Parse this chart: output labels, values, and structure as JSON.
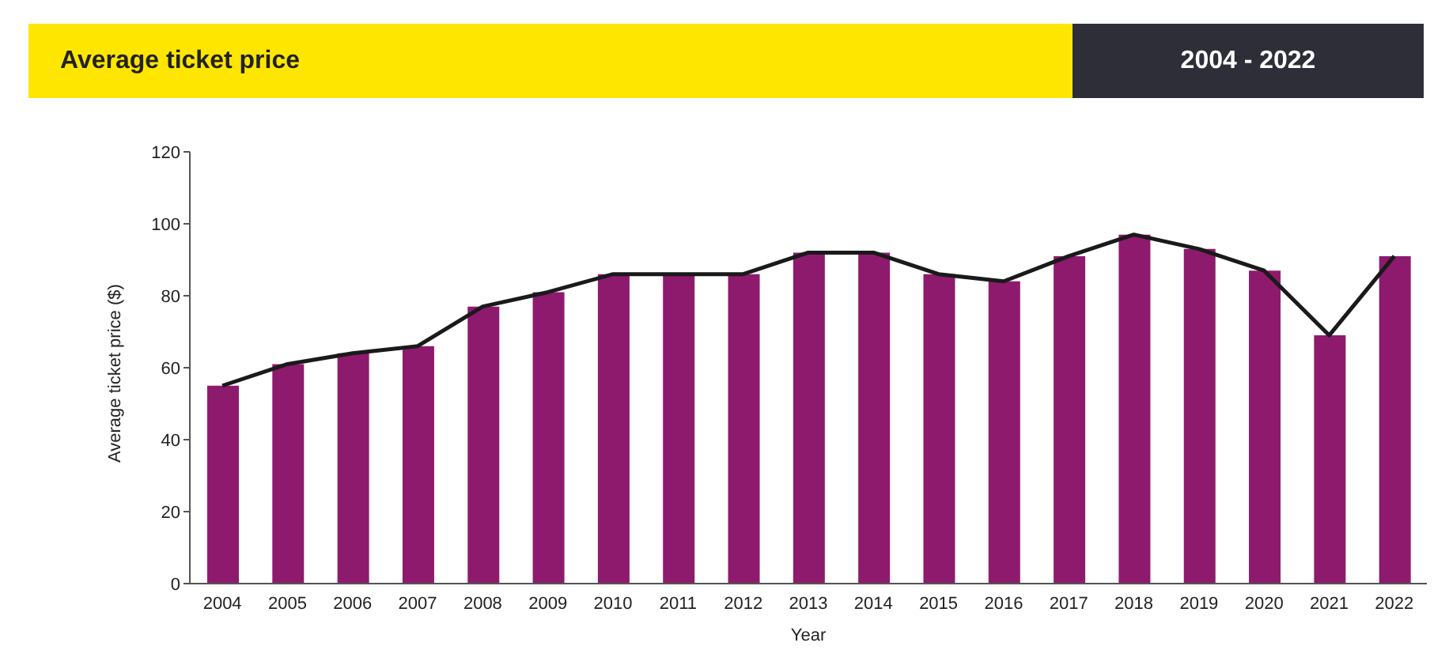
{
  "chart_data": {
    "type": "bar",
    "title": "Average ticket price",
    "subtitle": "2004 - 2022",
    "xlabel": "Year",
    "ylabel": "Average ticket price ($)",
    "categories": [
      "2004",
      "2005",
      "2006",
      "2007",
      "2008",
      "2009",
      "2010",
      "2011",
      "2012",
      "2013",
      "2014",
      "2015",
      "2016",
      "2017",
      "2018",
      "2019",
      "2020",
      "2021",
      "2022"
    ],
    "series": [
      {
        "color": "#8e1a6e",
        "values": [
          55,
          61,
          64,
          66,
          77,
          81,
          86,
          86,
          86,
          92,
          92,
          86,
          84,
          91,
          97,
          93,
          87,
          69,
          91
        ]
      },
      {
        "type": "line",
        "color": "#1a1a1a",
        "values": [
          55,
          61,
          64,
          66,
          77,
          81,
          86,
          86,
          86,
          92,
          92,
          86,
          84,
          91,
          97,
          93,
          87,
          69,
          91
        ]
      }
    ],
    "ylim": [
      0,
      120
    ],
    "yticks": [
      0,
      20,
      40,
      60,
      80,
      100,
      120
    ],
    "grid": false,
    "legend": false
  }
}
